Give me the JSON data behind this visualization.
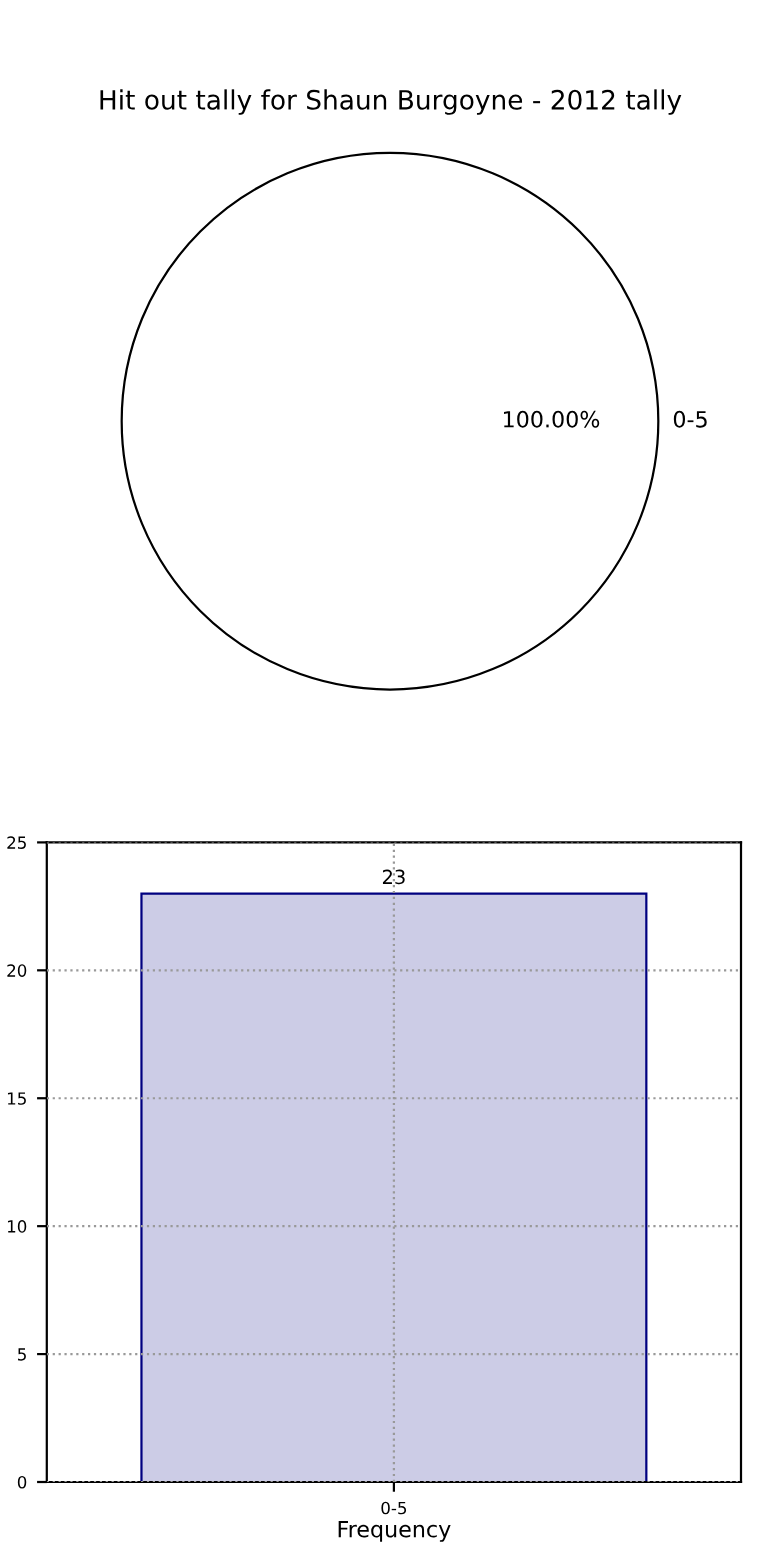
{
  "chart_data": [
    {
      "type": "pie",
      "title": "Hit out tally for Shaun Burgoyne - 2012 tally",
      "categories": [
        "0-5"
      ],
      "values": [
        100
      ],
      "colors": [
        "#ffffff"
      ],
      "value_labels": [
        "100.00%"
      ]
    },
    {
      "type": "bar",
      "categories": [
        "0-5"
      ],
      "values": [
        23
      ],
      "color": "#ccccE6",
      "xlabel": "Frequency",
      "ylim": [
        0,
        25
      ],
      "yticks": [
        0,
        5,
        10,
        15,
        20,
        25
      ],
      "grid": true,
      "line_style": "dotted",
      "data_labels": true
    }
  ]
}
